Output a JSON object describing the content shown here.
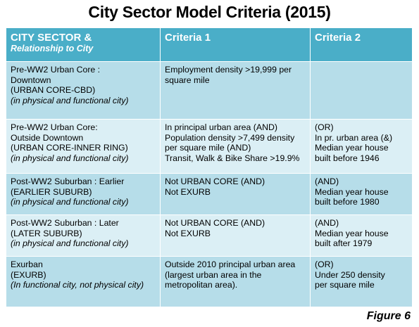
{
  "header": {
    "title": "City Sector Model Criteria (2015)"
  },
  "table": {
    "columns": [
      {
        "lines": [
          "CITY SECTOR &"
        ],
        "note": "Relationship to City"
      },
      {
        "lines": [
          "Criteria 1"
        ]
      },
      {
        "lines": [
          "Criteria 2"
        ]
      }
    ],
    "rows": [
      [
        {
          "lines": [
            "Pre-WW2 Urban Core :",
            "Downtown",
            "(URBAN CORE-CBD)"
          ],
          "note": "(in physical and functional city)"
        },
        {
          "lines": [
            "Employment density >19,999 per",
            "square mile"
          ]
        },
        {
          "lines": []
        }
      ],
      [
        {
          "lines": [
            "Pre-WW2 Urban Core:",
            "Outside Downtown",
            "(URBAN CORE-INNER RING)"
          ],
          "note": "(in physical and functional city)"
        },
        {
          "lines": [
            "In principal urban area (AND)",
            "Population density >7,499 density",
            "per square mile (AND)",
            "Transit, Walk & Bike Share >19.9%"
          ]
        },
        {
          "lines": [
            "(OR)",
            "In pr. urban area (&)",
            "Median year house",
            "built before 1946"
          ]
        }
      ],
      [
        {
          "lines": [
            "Post-WW2 Suburban : Earlier",
            "(EARLIER SUBURB)"
          ],
          "note": "(in physical and functional city)"
        },
        {
          "lines": [
            "Not URBAN CORE (AND)",
            "Not EXURB"
          ]
        },
        {
          "lines": [
            "(AND)",
            "Median year house",
            "built before 1980"
          ]
        }
      ],
      [
        {
          "lines": [
            "Post-WW2 Suburban : Later",
            "(LATER SUBURB)"
          ],
          "note": "(in physical and functional city)"
        },
        {
          "lines": [
            "Not URBAN CORE (AND)",
            "Not EXURB"
          ]
        },
        {
          "lines": [
            "(AND)",
            "Median year house",
            "built after 1979"
          ]
        }
      ],
      [
        {
          "lines": [
            "Exurban",
            "(EXURB)"
          ],
          "note": "(In functional city, not physical city)"
        },
        {
          "lines": [
            "Outside 2010 principal urban area",
            "(largest urban area in the",
            "metropolitan area)."
          ]
        },
        {
          "lines": [
            "(OR)",
            "Under 250 density",
            "per square mile"
          ]
        }
      ]
    ]
  },
  "footer": {
    "figure": "Figure 6"
  }
}
